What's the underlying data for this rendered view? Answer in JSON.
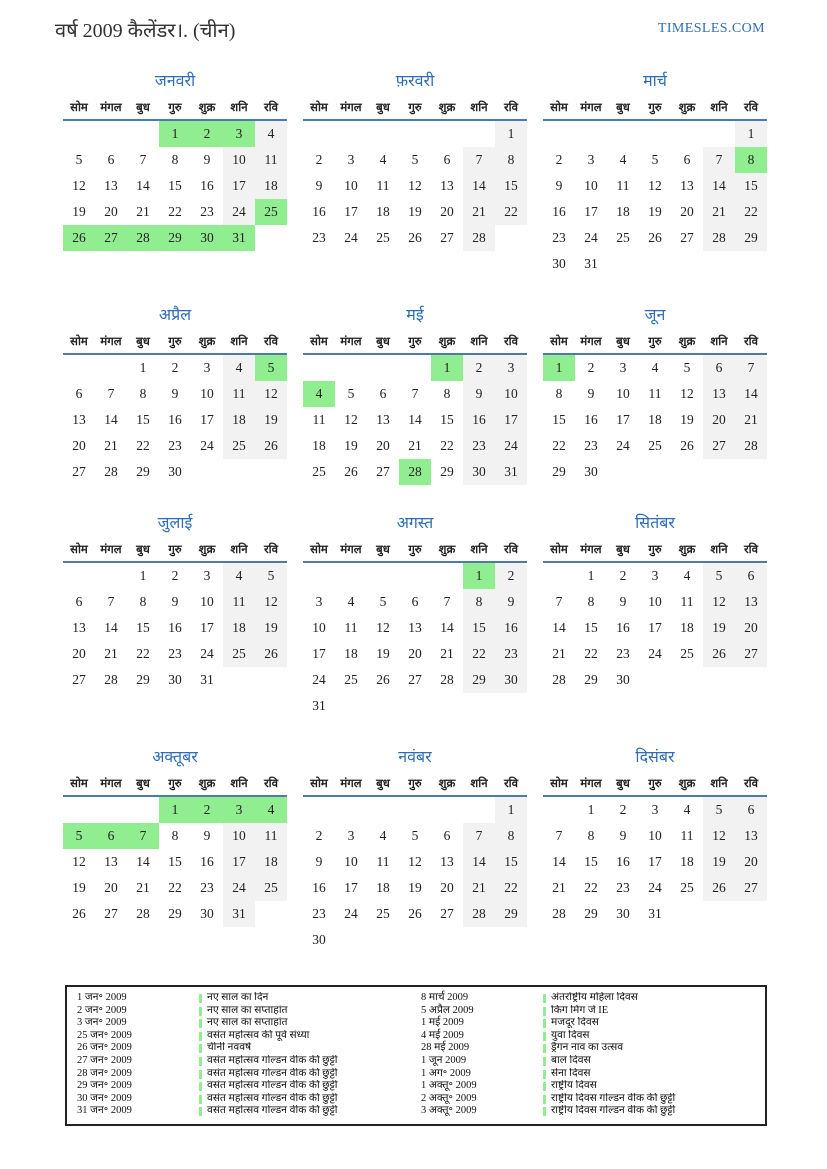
{
  "page": {
    "title": "वर्ष 2009 कैलेंडर।. (चीन)",
    "brand": "TIMESLES.COM"
  },
  "colors": {
    "accent_blue": "#2e6db5",
    "holiday_green": "#90ee90",
    "weekend_gray": "#f2f2f2",
    "header_underline": "#4a7aae"
  },
  "calendar": {
    "day_headers": [
      "सोम",
      "मंगल",
      "बुध",
      "गुरु",
      "शुक्र",
      "शनि",
      "रवि"
    ],
    "months": [
      {
        "name": "जनवरी",
        "weeks": [
          [
            null,
            null,
            null,
            1,
            2,
            3,
            4
          ],
          [
            5,
            6,
            7,
            8,
            9,
            10,
            11
          ],
          [
            12,
            13,
            14,
            15,
            16,
            17,
            18
          ],
          [
            19,
            20,
            21,
            22,
            23,
            24,
            25
          ],
          [
            26,
            27,
            28,
            29,
            30,
            31,
            null
          ]
        ],
        "holidays": [
          1,
          2,
          3,
          25,
          26,
          27,
          28,
          29,
          30,
          31
        ]
      },
      {
        "name": "फ़रवरी",
        "weeks": [
          [
            null,
            null,
            null,
            null,
            null,
            null,
            1
          ],
          [
            2,
            3,
            4,
            5,
            6,
            7,
            8
          ],
          [
            9,
            10,
            11,
            12,
            13,
            14,
            15
          ],
          [
            16,
            17,
            18,
            19,
            20,
            21,
            22
          ],
          [
            23,
            24,
            25,
            26,
            27,
            28,
            null
          ]
        ],
        "holidays": []
      },
      {
        "name": "मार्च",
        "weeks": [
          [
            null,
            null,
            null,
            null,
            null,
            null,
            1
          ],
          [
            2,
            3,
            4,
            5,
            6,
            7,
            8
          ],
          [
            9,
            10,
            11,
            12,
            13,
            14,
            15
          ],
          [
            16,
            17,
            18,
            19,
            20,
            21,
            22
          ],
          [
            23,
            24,
            25,
            26,
            27,
            28,
            29
          ],
          [
            30,
            31,
            null,
            null,
            null,
            null,
            null
          ]
        ],
        "holidays": [
          8
        ]
      },
      {
        "name": "अप्रैल",
        "weeks": [
          [
            null,
            null,
            1,
            2,
            3,
            4,
            5
          ],
          [
            6,
            7,
            8,
            9,
            10,
            11,
            12
          ],
          [
            13,
            14,
            15,
            16,
            17,
            18,
            19
          ],
          [
            20,
            21,
            22,
            23,
            24,
            25,
            26
          ],
          [
            27,
            28,
            29,
            30,
            null,
            null,
            null
          ]
        ],
        "holidays": [
          5
        ]
      },
      {
        "name": "मई",
        "weeks": [
          [
            null,
            null,
            null,
            null,
            1,
            2,
            3
          ],
          [
            4,
            5,
            6,
            7,
            8,
            9,
            10
          ],
          [
            11,
            12,
            13,
            14,
            15,
            16,
            17
          ],
          [
            18,
            19,
            20,
            21,
            22,
            23,
            24
          ],
          [
            25,
            26,
            27,
            28,
            29,
            30,
            31
          ]
        ],
        "holidays": [
          1,
          4,
          28
        ]
      },
      {
        "name": "जून",
        "weeks": [
          [
            1,
            2,
            3,
            4,
            5,
            6,
            7
          ],
          [
            8,
            9,
            10,
            11,
            12,
            13,
            14
          ],
          [
            15,
            16,
            17,
            18,
            19,
            20,
            21
          ],
          [
            22,
            23,
            24,
            25,
            26,
            27,
            28
          ],
          [
            29,
            30,
            null,
            null,
            null,
            null,
            null
          ]
        ],
        "holidays": [
          1
        ]
      },
      {
        "name": "जुलाई",
        "weeks": [
          [
            null,
            null,
            1,
            2,
            3,
            4,
            5
          ],
          [
            6,
            7,
            8,
            9,
            10,
            11,
            12
          ],
          [
            13,
            14,
            15,
            16,
            17,
            18,
            19
          ],
          [
            20,
            21,
            22,
            23,
            24,
            25,
            26
          ],
          [
            27,
            28,
            29,
            30,
            31,
            null,
            null
          ]
        ],
        "holidays": []
      },
      {
        "name": "अगस्त",
        "weeks": [
          [
            null,
            null,
            null,
            null,
            null,
            1,
            2
          ],
          [
            3,
            4,
            5,
            6,
            7,
            8,
            9
          ],
          [
            10,
            11,
            12,
            13,
            14,
            15,
            16
          ],
          [
            17,
            18,
            19,
            20,
            21,
            22,
            23
          ],
          [
            24,
            25,
            26,
            27,
            28,
            29,
            30
          ],
          [
            31,
            null,
            null,
            null,
            null,
            null,
            null
          ]
        ],
        "holidays": [
          1
        ]
      },
      {
        "name": "सितंबर",
        "weeks": [
          [
            null,
            1,
            2,
            3,
            4,
            5,
            6
          ],
          [
            7,
            8,
            9,
            10,
            11,
            12,
            13
          ],
          [
            14,
            15,
            16,
            17,
            18,
            19,
            20
          ],
          [
            21,
            22,
            23,
            24,
            25,
            26,
            27
          ],
          [
            28,
            29,
            30,
            null,
            null,
            null,
            null
          ]
        ],
        "holidays": []
      },
      {
        "name": "अक्तूबर",
        "weeks": [
          [
            null,
            null,
            null,
            1,
            2,
            3,
            4
          ],
          [
            5,
            6,
            7,
            8,
            9,
            10,
            11
          ],
          [
            12,
            13,
            14,
            15,
            16,
            17,
            18
          ],
          [
            19,
            20,
            21,
            22,
            23,
            24,
            25
          ],
          [
            26,
            27,
            28,
            29,
            30,
            31,
            null
          ]
        ],
        "holidays": [
          1,
          2,
          3,
          4,
          5,
          6,
          7
        ]
      },
      {
        "name": "नवंबर",
        "weeks": [
          [
            null,
            null,
            null,
            null,
            null,
            null,
            1
          ],
          [
            2,
            3,
            4,
            5,
            6,
            7,
            8
          ],
          [
            9,
            10,
            11,
            12,
            13,
            14,
            15
          ],
          [
            16,
            17,
            18,
            19,
            20,
            21,
            22
          ],
          [
            23,
            24,
            25,
            26,
            27,
            28,
            29
          ],
          [
            30,
            null,
            null,
            null,
            null,
            null,
            null
          ]
        ],
        "holidays": []
      },
      {
        "name": "दिसंबर",
        "weeks": [
          [
            null,
            1,
            2,
            3,
            4,
            5,
            6
          ],
          [
            7,
            8,
            9,
            10,
            11,
            12,
            13
          ],
          [
            14,
            15,
            16,
            17,
            18,
            19,
            20
          ],
          [
            21,
            22,
            23,
            24,
            25,
            26,
            27
          ],
          [
            28,
            29,
            30,
            31,
            null,
            null,
            null
          ]
        ],
        "holidays": []
      }
    ]
  },
  "legend": {
    "left": [
      {
        "date": "1 जन॰ 2009",
        "name": "नए साल का दिन"
      },
      {
        "date": "2 जन॰ 2009",
        "name": "नए साल का सप्ताहांत"
      },
      {
        "date": "3 जन॰ 2009",
        "name": "नए साल का सप्ताहांत"
      },
      {
        "date": "25 जन॰ 2009",
        "name": "वसंत महोत्सव की पूर्व संध्या"
      },
      {
        "date": "26 जन॰ 2009",
        "name": "चीनी नववर्ष"
      },
      {
        "date": "27 जन॰ 2009",
        "name": "वसंत महोत्सव गोल्डन वीक की छुट्टी"
      },
      {
        "date": "28 जन॰ 2009",
        "name": "वसंत महोत्सव गोल्डन वीक की छुट्टी"
      },
      {
        "date": "29 जन॰ 2009",
        "name": "वसंत महोत्सव गोल्डन वीक की छुट्टी"
      },
      {
        "date": "30 जन॰ 2009",
        "name": "वसंत महोत्सव गोल्डन वीक की छुट्टी"
      },
      {
        "date": "31 जन॰ 2009",
        "name": "वसंत महोत्सव गोल्डन वीक की छुट्टी"
      }
    ],
    "right": [
      {
        "date": "8 मार्च 2009",
        "name": "अंतर्राष्ट्रीय महिला दिवस"
      },
      {
        "date": "5 अप्रैल 2009",
        "name": "किंग मिंग जे IE"
      },
      {
        "date": "1 मई 2009",
        "name": "मजदूर दिवस"
      },
      {
        "date": "4 मई 2009",
        "name": "युवा दिवस"
      },
      {
        "date": "28 मई 2009",
        "name": "ड्रैगन नाव का उत्सव"
      },
      {
        "date": "1 जून 2009",
        "name": "बाल दिवस"
      },
      {
        "date": "1 अग॰ 2009",
        "name": "सेना दिवस"
      },
      {
        "date": "1 अक्तू॰ 2009",
        "name": "राष्ट्रीय दिवस"
      },
      {
        "date": "2 अक्तू॰ 2009",
        "name": "राष्ट्रीय दिवस गोल्डन वीक की छुट्टी"
      },
      {
        "date": "3 अक्तू॰ 2009",
        "name": "राष्ट्रीय दिवस गोल्डन वीक की छुट्टी"
      }
    ]
  }
}
